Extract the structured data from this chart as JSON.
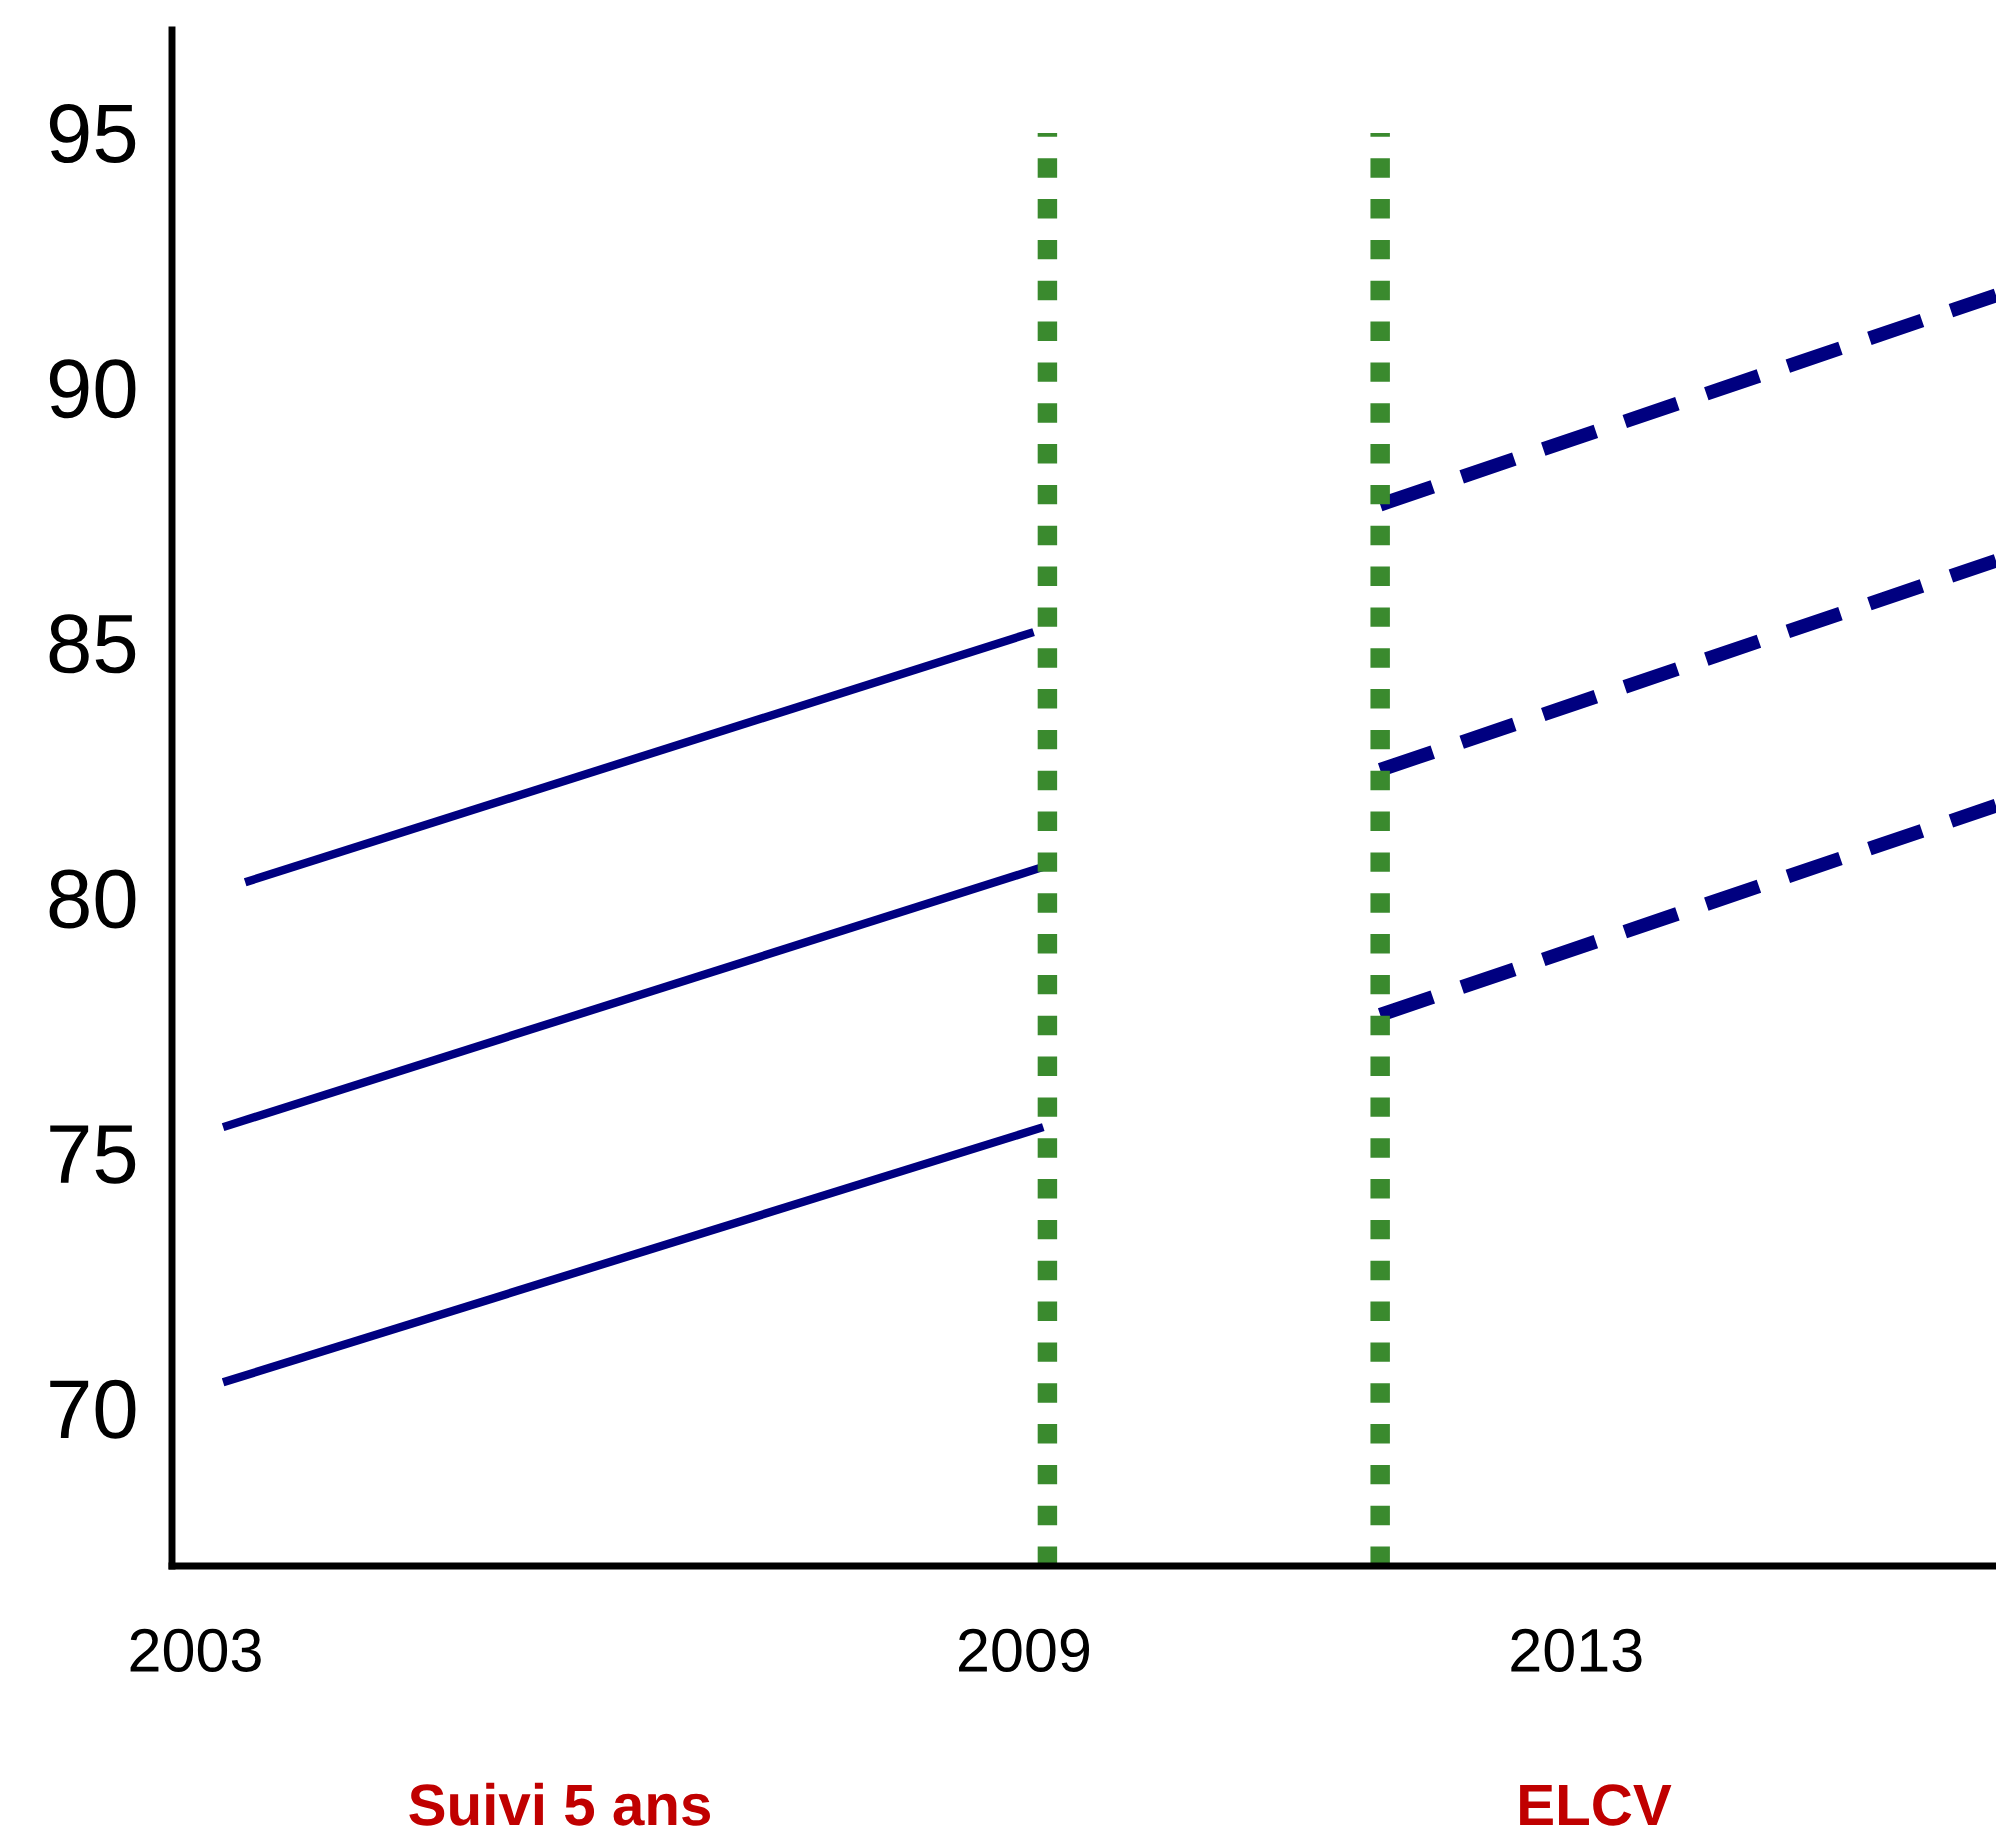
{
  "chart_data": {
    "type": "line",
    "xlim": [
      2002.83,
      2016.04
    ],
    "ylim": [
      66.9,
      97
    ],
    "xticks": [
      2003,
      2009,
      2013
    ],
    "yticks": [
      70,
      75,
      80,
      85,
      90,
      95
    ],
    "grid": false,
    "legend": false,
    "marker": "none",
    "series": [
      {
        "color": "#000080",
        "line_style": "solid",
        "x": [
          2003.36,
          2009.07
        ],
        "values": [
          80.3,
          85.2
        ]
      },
      {
        "color": "#000080",
        "line_style": "solid",
        "x": [
          2003.2,
          2009.14
        ],
        "values": [
          75.5,
          80.6
        ]
      },
      {
        "color": "#000080",
        "line_style": "solid",
        "x": [
          2003.2,
          2009.14
        ],
        "values": [
          70.5,
          75.5
        ]
      },
      {
        "color": "#000080",
        "line_style": "dashed",
        "x": [
          2011.58,
          2016.04
        ],
        "values": [
          87.7,
          91.8
        ]
      },
      {
        "color": "#000080",
        "line_style": "dashed",
        "x": [
          2011.58,
          2016.04
        ],
        "values": [
          82.5,
          86.6
        ]
      },
      {
        "color": "#000080",
        "line_style": "dashed",
        "x": [
          2011.58,
          2016.04
        ],
        "values": [
          77.7,
          81.8
        ]
      }
    ],
    "ref_lines": [
      {
        "axis": "x",
        "value": 2009.17,
        "color": "#3a8a2e",
        "line_style": "dotted"
      },
      {
        "axis": "x",
        "value": 2011.58,
        "color": "#3a8a2e",
        "line_style": "dotted"
      }
    ],
    "annotations": [
      "Suivi 5 ans",
      "ELCV"
    ]
  }
}
